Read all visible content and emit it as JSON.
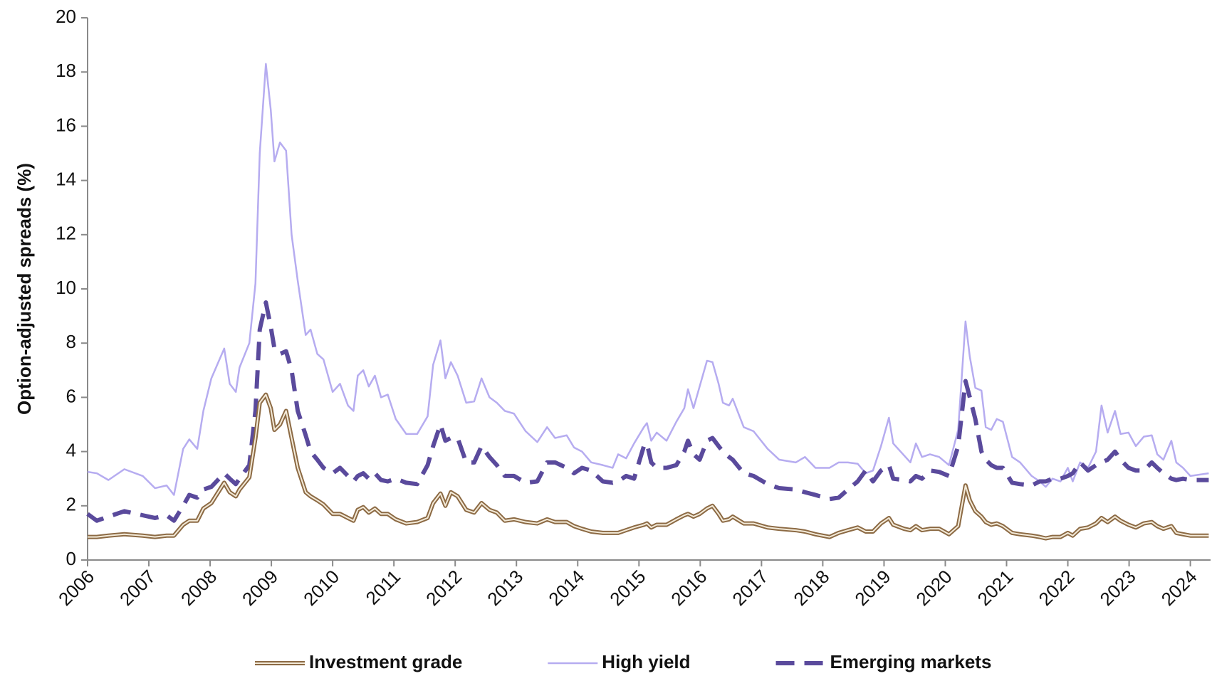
{
  "chart_data": {
    "type": "line",
    "ylabel": "Option-adjusted spreads (%)",
    "xlim": [
      2006,
      2024.33
    ],
    "xticks": [
      2006,
      2007,
      2008,
      2009,
      2010,
      2011,
      2012,
      2013,
      2014,
      2015,
      2016,
      2017,
      2018,
      2019,
      2020,
      2021,
      2022,
      2023,
      2024
    ],
    "ylim": [
      0,
      20
    ],
    "yticks": [
      0,
      2,
      4,
      6,
      8,
      10,
      12,
      14,
      16,
      18,
      20
    ],
    "grid": false,
    "legend": "bottom",
    "x": [
      2006.0,
      2006.15,
      2006.34,
      2006.6,
      2006.9,
      2007.1,
      2007.29,
      2007.41,
      2007.56,
      2007.66,
      2007.79,
      2007.89,
      2008.02,
      2008.23,
      2008.32,
      2008.42,
      2008.48,
      2008.64,
      2008.74,
      2008.81,
      2008.91,
      2008.99,
      2009.05,
      2009.14,
      2009.24,
      2009.33,
      2009.43,
      2009.56,
      2009.64,
      2009.75,
      2009.85,
      2010.0,
      2010.12,
      2010.25,
      2010.34,
      2010.41,
      2010.5,
      2010.59,
      2010.69,
      2010.79,
      2010.9,
      2011.03,
      2011.2,
      2011.38,
      2011.55,
      2011.64,
      2011.76,
      2011.84,
      2011.93,
      2012.04,
      2012.18,
      2012.31,
      2012.43,
      2012.56,
      2012.68,
      2012.81,
      2012.96,
      2013.15,
      2013.34,
      2013.5,
      2013.63,
      2013.82,
      2013.94,
      2014.07,
      2014.22,
      2014.41,
      2014.57,
      2014.66,
      2014.79,
      2014.92,
      2015.08,
      2015.13,
      2015.2,
      2015.29,
      2015.45,
      2015.61,
      2015.74,
      2015.8,
      2015.89,
      2015.99,
      2016.11,
      2016.2,
      2016.3,
      2016.37,
      2016.47,
      2016.53,
      2016.71,
      2016.87,
      2017.1,
      2017.29,
      2017.56,
      2017.71,
      2017.88,
      2018.11,
      2018.26,
      2018.41,
      2018.57,
      2018.7,
      2018.82,
      2018.95,
      2019.08,
      2019.15,
      2019.33,
      2019.43,
      2019.52,
      2019.62,
      2019.75,
      2019.9,
      2020.06,
      2020.21,
      2020.33,
      2020.4,
      2020.49,
      2020.59,
      2020.66,
      2020.75,
      2020.84,
      2020.94,
      2021.09,
      2021.22,
      2021.41,
      2021.54,
      2021.64,
      2021.75,
      2021.88,
      2022.0,
      2022.08,
      2022.2,
      2022.33,
      2022.46,
      2022.55,
      2022.65,
      2022.77,
      2022.86,
      2022.99,
      2023.11,
      2023.24,
      2023.37,
      2023.46,
      2023.56,
      2023.69,
      2023.77,
      2023.88,
      2024.0,
      2024.3
    ],
    "series": [
      {
        "name": "Investment grade",
        "color": "#8c6a44",
        "line_style": "double",
        "values": [
          0.85,
          0.85,
          0.9,
          0.95,
          0.9,
          0.85,
          0.9,
          0.9,
          1.3,
          1.45,
          1.45,
          1.9,
          2.1,
          2.85,
          2.5,
          2.35,
          2.6,
          3.05,
          4.5,
          5.8,
          6.1,
          5.6,
          4.8,
          5.0,
          5.5,
          4.5,
          3.4,
          2.5,
          2.35,
          2.2,
          2.05,
          1.7,
          1.7,
          1.55,
          1.45,
          1.85,
          1.95,
          1.75,
          1.9,
          1.7,
          1.7,
          1.5,
          1.35,
          1.4,
          1.55,
          2.1,
          2.45,
          2.0,
          2.5,
          2.35,
          1.85,
          1.75,
          2.1,
          1.85,
          1.75,
          1.45,
          1.5,
          1.4,
          1.35,
          1.5,
          1.4,
          1.4,
          1.25,
          1.15,
          1.05,
          1.0,
          1.0,
          1.0,
          1.1,
          1.2,
          1.3,
          1.35,
          1.2,
          1.3,
          1.3,
          1.5,
          1.65,
          1.7,
          1.6,
          1.7,
          1.9,
          2.0,
          1.7,
          1.45,
          1.5,
          1.6,
          1.35,
          1.35,
          1.2,
          1.15,
          1.1,
          1.05,
          0.95,
          0.85,
          1.0,
          1.1,
          1.2,
          1.05,
          1.05,
          1.35,
          1.55,
          1.3,
          1.15,
          1.1,
          1.25,
          1.1,
          1.15,
          1.15,
          0.95,
          1.25,
          2.75,
          2.2,
          1.8,
          1.6,
          1.4,
          1.3,
          1.35,
          1.25,
          1.0,
          0.95,
          0.9,
          0.85,
          0.8,
          0.85,
          0.85,
          1.0,
          0.9,
          1.15,
          1.2,
          1.35,
          1.55,
          1.4,
          1.6,
          1.45,
          1.3,
          1.2,
          1.35,
          1.4,
          1.25,
          1.15,
          1.25,
          1.0,
          0.95,
          0.9,
          0.9
        ]
      },
      {
        "name": "High yield",
        "color": "#b6acf0",
        "line_style": "solid",
        "values": [
          3.25,
          3.2,
          2.95,
          3.35,
          3.1,
          2.65,
          2.75,
          2.4,
          4.1,
          4.45,
          4.1,
          5.5,
          6.7,
          7.8,
          6.5,
          6.2,
          7.1,
          8.0,
          10.2,
          15.0,
          18.3,
          16.6,
          14.7,
          15.4,
          15.1,
          12.0,
          10.3,
          8.3,
          8.5,
          7.6,
          7.4,
          6.2,
          6.5,
          5.7,
          5.5,
          6.8,
          7.0,
          6.4,
          6.8,
          6.0,
          6.1,
          5.2,
          4.65,
          4.65,
          5.3,
          7.2,
          8.1,
          6.7,
          7.3,
          6.8,
          5.8,
          5.85,
          6.7,
          6.0,
          5.8,
          5.5,
          5.4,
          4.75,
          4.35,
          4.9,
          4.5,
          4.6,
          4.15,
          4.0,
          3.6,
          3.5,
          3.4,
          3.9,
          3.75,
          4.3,
          4.9,
          5.05,
          4.4,
          4.7,
          4.4,
          5.1,
          5.6,
          6.3,
          5.6,
          6.4,
          7.35,
          7.3,
          6.5,
          5.8,
          5.7,
          5.95,
          4.9,
          4.75,
          4.1,
          3.7,
          3.6,
          3.8,
          3.4,
          3.4,
          3.6,
          3.6,
          3.55,
          3.2,
          3.3,
          4.2,
          5.25,
          4.3,
          3.85,
          3.6,
          4.3,
          3.8,
          3.9,
          3.8,
          3.5,
          4.8,
          8.8,
          7.5,
          6.35,
          6.25,
          4.9,
          4.8,
          5.2,
          5.1,
          3.8,
          3.6,
          3.1,
          2.9,
          2.7,
          3.0,
          2.9,
          3.4,
          2.9,
          3.6,
          3.4,
          4.0,
          5.7,
          4.7,
          5.5,
          4.65,
          4.7,
          4.2,
          4.55,
          4.6,
          3.9,
          3.7,
          4.4,
          3.6,
          3.4,
          3.1,
          3.2
        ]
      },
      {
        "name": "Emerging markets",
        "color": "#5a4a9c",
        "line_style": "dashed",
        "values": [
          1.7,
          1.45,
          1.6,
          1.8,
          1.65,
          1.55,
          1.65,
          1.45,
          2.0,
          2.4,
          2.3,
          2.6,
          2.7,
          3.2,
          3.0,
          2.8,
          3.0,
          3.5,
          5.5,
          8.5,
          9.5,
          8.6,
          7.8,
          7.6,
          7.7,
          7.0,
          5.5,
          4.6,
          4.0,
          3.7,
          3.4,
          3.2,
          3.4,
          3.1,
          2.9,
          3.1,
          3.2,
          3.0,
          3.2,
          2.95,
          2.9,
          3.0,
          2.85,
          2.8,
          3.5,
          4.2,
          5.0,
          4.4,
          4.5,
          4.5,
          3.6,
          3.6,
          4.2,
          3.8,
          3.5,
          3.1,
          3.1,
          2.85,
          2.9,
          3.6,
          3.6,
          3.4,
          3.2,
          3.4,
          3.3,
          2.9,
          2.85,
          2.9,
          3.1,
          3.0,
          4.2,
          4.3,
          3.6,
          3.4,
          3.4,
          3.5,
          4.0,
          4.4,
          3.9,
          3.7,
          4.4,
          4.5,
          4.2,
          4.0,
          3.8,
          3.7,
          3.2,
          3.1,
          2.8,
          2.65,
          2.6,
          2.5,
          2.4,
          2.25,
          2.3,
          2.6,
          2.9,
          3.3,
          2.9,
          3.3,
          3.5,
          3.0,
          2.95,
          2.9,
          3.1,
          3.0,
          3.3,
          3.25,
          3.1,
          4.2,
          6.6,
          6.0,
          5.2,
          4.0,
          3.7,
          3.5,
          3.4,
          3.4,
          2.85,
          2.8,
          2.75,
          2.9,
          2.9,
          3.0,
          3.0,
          3.1,
          3.2,
          3.6,
          3.3,
          3.5,
          3.6,
          3.7,
          4.0,
          3.7,
          3.4,
          3.3,
          3.3,
          3.6,
          3.4,
          3.2,
          3.0,
          2.95,
          3.0,
          2.95,
          2.95
        ]
      }
    ]
  }
}
